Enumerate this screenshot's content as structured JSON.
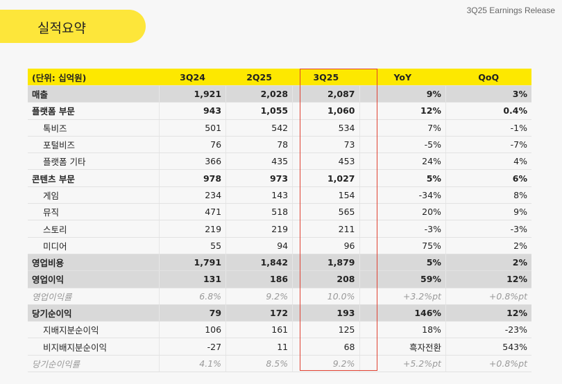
{
  "title": "실적요약",
  "release": "3Q25 Earnings Release",
  "table": {
    "headers": [
      "(단위: 십억원)",
      "3Q24",
      "2Q25",
      "3Q25",
      "YoY",
      "QoQ"
    ],
    "rows": [
      {
        "style": "gray",
        "cells": [
          "매출",
          "1,921",
          "2,028",
          "2,087",
          "9%",
          "3%"
        ]
      },
      {
        "style": "bold",
        "cells": [
          "플랫폼 부문",
          "943",
          "1,055",
          "1,060",
          "12%",
          "0.4%"
        ]
      },
      {
        "style": "sub",
        "cells": [
          "톡비즈",
          "501",
          "542",
          "534",
          "7%",
          "-1%"
        ]
      },
      {
        "style": "sub",
        "cells": [
          "포털비즈",
          "76",
          "78",
          "73",
          "-5%",
          "-7%"
        ]
      },
      {
        "style": "sub",
        "cells": [
          "플랫폼 기타",
          "366",
          "435",
          "453",
          "24%",
          "4%"
        ]
      },
      {
        "style": "bold",
        "cells": [
          "콘텐츠 부문",
          "978",
          "973",
          "1,027",
          "5%",
          "6%"
        ]
      },
      {
        "style": "sub",
        "cells": [
          "게임",
          "234",
          "143",
          "154",
          "-34%",
          "8%"
        ]
      },
      {
        "style": "sub",
        "cells": [
          "뮤직",
          "471",
          "518",
          "565",
          "20%",
          "9%"
        ]
      },
      {
        "style": "sub",
        "cells": [
          "스토리",
          "219",
          "219",
          "211",
          "-3%",
          "-3%"
        ]
      },
      {
        "style": "sub",
        "cells": [
          "미디어",
          "55",
          "94",
          "96",
          "75%",
          "2%"
        ]
      },
      {
        "style": "gray",
        "cells": [
          "영업비용",
          "1,791",
          "1,842",
          "1,879",
          "5%",
          "2%"
        ]
      },
      {
        "style": "gray",
        "cells": [
          "영업이익",
          "131",
          "186",
          "208",
          "59%",
          "12%"
        ]
      },
      {
        "style": "ital",
        "cells": [
          "영업이익률",
          "6.8%",
          "9.2%",
          "10.0%",
          "+3.2%pt",
          "+0.8%pt"
        ]
      },
      {
        "style": "gray",
        "cells": [
          "당기순이익",
          "79",
          "172",
          "193",
          "146%",
          "12%"
        ]
      },
      {
        "style": "sub",
        "cells": [
          "지배지분순이익",
          "106",
          "161",
          "125",
          "18%",
          "-23%"
        ]
      },
      {
        "style": "sub",
        "cells": [
          "비지배지분순이익",
          "-27",
          "11",
          "68",
          "흑자전환",
          "543%"
        ]
      },
      {
        "style": "ital",
        "cells": [
          "당기순이익률",
          "4.1%",
          "8.5%",
          "9.2%",
          "+5.2%pt",
          "+0.8%pt"
        ]
      }
    ]
  },
  "colors": {
    "accent": "#fde800",
    "highlight": "#e04030"
  }
}
